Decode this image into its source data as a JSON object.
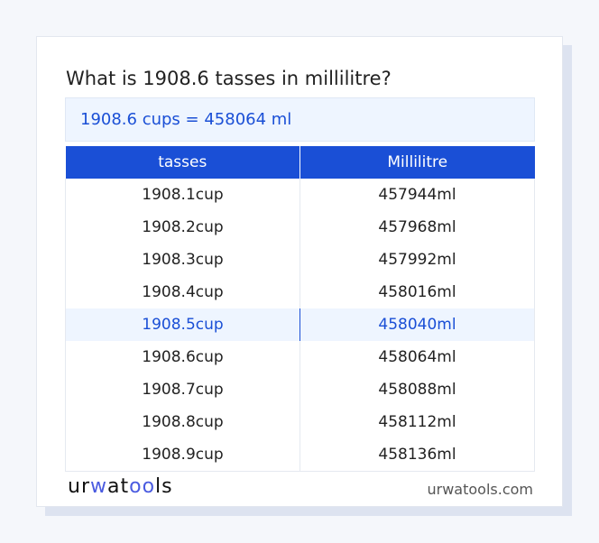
{
  "title": "What is 1908.6 tasses in millilitre?",
  "result": "1908.6 cups = 458064 ml",
  "table": {
    "headers": [
      "tasses",
      "Millilitre"
    ],
    "rows": [
      [
        "1908.1cup",
        "457944ml"
      ],
      [
        "1908.2cup",
        "457968ml"
      ],
      [
        "1908.3cup",
        "457992ml"
      ],
      [
        "1908.4cup",
        "458016ml"
      ],
      [
        "1908.5cup",
        "458040ml"
      ],
      [
        "1908.6cup",
        "458064ml"
      ],
      [
        "1908.7cup",
        "458088ml"
      ],
      [
        "1908.8cup",
        "458112ml"
      ],
      [
        "1908.9cup",
        "458136ml"
      ]
    ],
    "highlighted_row": 4
  },
  "footer": {
    "logo": "urwatools",
    "logo_parts": [
      "ur",
      "w",
      "at",
      "oo",
      "ls"
    ],
    "site": "urwatools.com"
  },
  "colors": {
    "accent": "#1a4fd6",
    "highlight_bg": "#eef5ff"
  }
}
